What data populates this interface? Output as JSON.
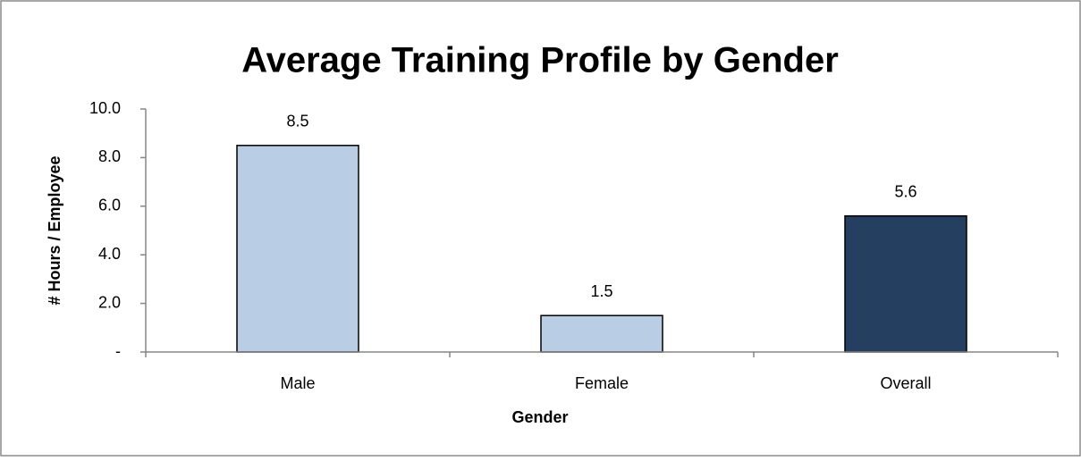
{
  "chart_data": {
    "type": "bar",
    "title": "Average Training Profile by Gender",
    "x_label": "Gender",
    "y_label": "# Hours / Employee",
    "categories": [
      "Male",
      "Female",
      "Overall"
    ],
    "values": [
      8.5,
      1.5,
      5.6
    ],
    "colors": [
      "#b9cde5",
      "#b9cde5",
      "#243f60"
    ],
    "ylim": [
      0,
      10
    ],
    "yticks": [
      {
        "value": 0,
        "label": "-"
      },
      {
        "value": 2,
        "label": "2.0"
      },
      {
        "value": 4,
        "label": "4.0"
      },
      {
        "value": 6,
        "label": "6.0"
      },
      {
        "value": 8,
        "label": "8.0"
      },
      {
        "value": 10,
        "label": "10.0"
      }
    ],
    "grid": false
  }
}
